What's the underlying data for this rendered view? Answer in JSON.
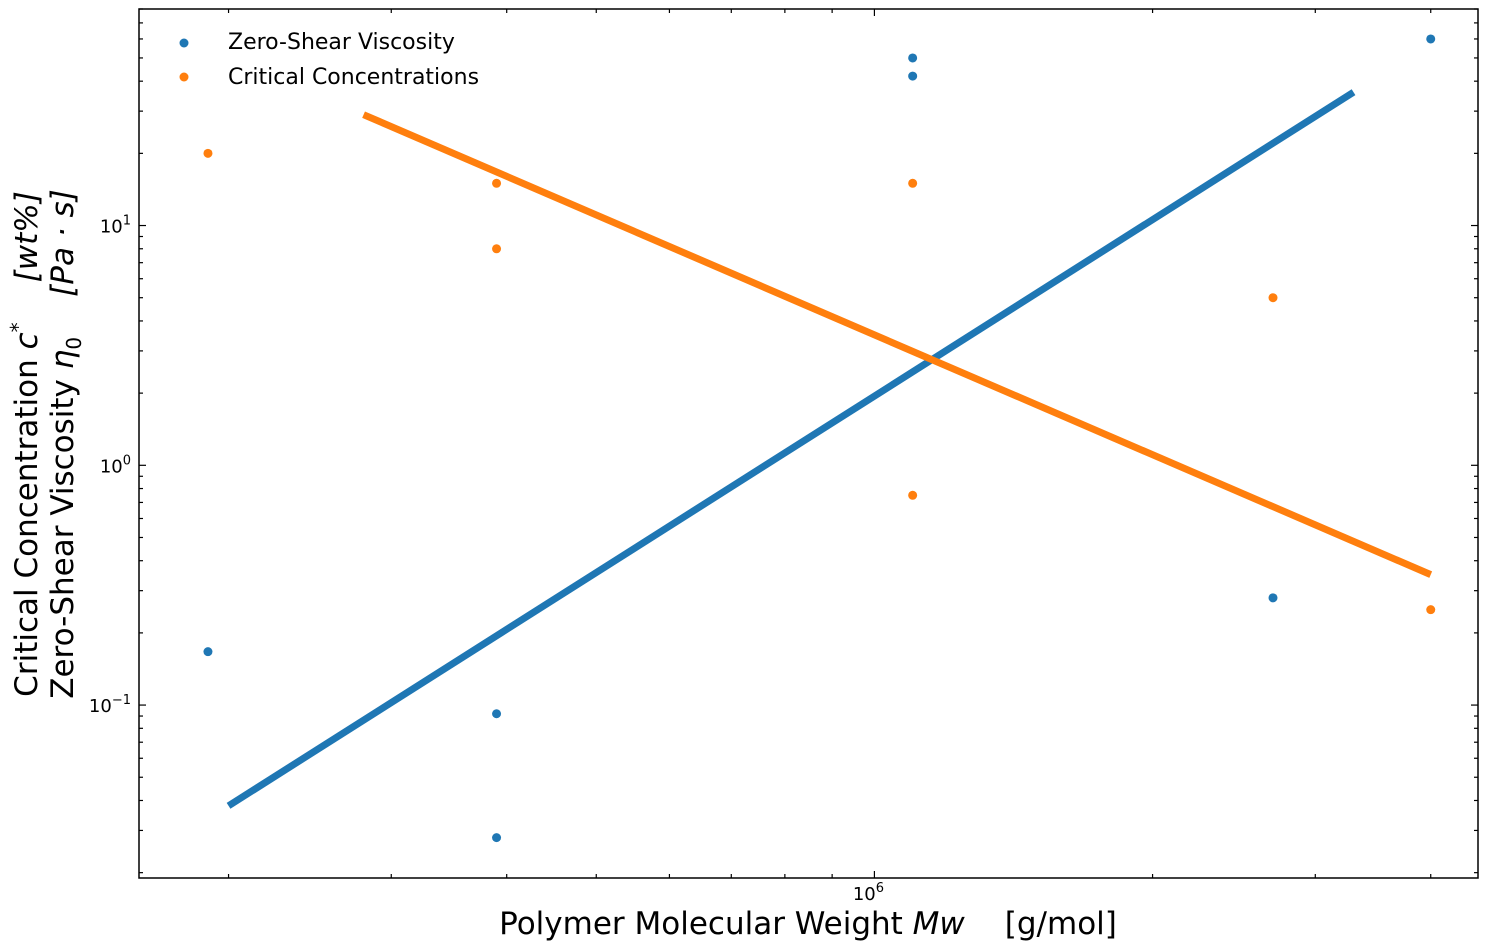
{
  "chart_data": {
    "type": "scatter",
    "title": "",
    "xlabel": "Polymer Molecular Weight Mw [g/mol]",
    "xlabel_parts": {
      "text": "Polymer Molecular Weight ",
      "var": "Mw",
      "unit": "[g/mol]"
    },
    "ylabel_lines": [
      {
        "text": "Critical Concentration ",
        "var": "c",
        "sup": "*",
        "unit": "[wt%]"
      },
      {
        "text": "Zero-Shear Viscosity ",
        "var": "η",
        "sub": "0",
        "unit": "[Pa · s]"
      }
    ],
    "x_scale": "log",
    "y_scale": "log",
    "xlim": [
      160000,
      4500000
    ],
    "ylim": [
      0.019,
      80
    ],
    "x_ticks": [
      {
        "value": 1000000,
        "base": "10",
        "exp": "6"
      }
    ],
    "y_ticks": [
      {
        "value": 0.1,
        "base": "10",
        "exp": "−1"
      },
      {
        "value": 1,
        "base": "10",
        "exp": "0"
      },
      {
        "value": 10,
        "base": "10",
        "exp": "1"
      }
    ],
    "grid": false,
    "legend_position": "top-left",
    "series": [
      {
        "name": "Zero-Shear Viscosity",
        "kind": "scatter",
        "color": "#1f77b4",
        "points": [
          [
            190000,
            0.167
          ],
          [
            390000,
            0.092
          ],
          [
            390000,
            0.028
          ],
          [
            1100000,
            50
          ],
          [
            1100000,
            42
          ],
          [
            2700000,
            0.28
          ],
          [
            4000000,
            60
          ]
        ]
      },
      {
        "name": "Critical Concentrations",
        "kind": "scatter",
        "color": "#ff7f0e",
        "points": [
          [
            190000,
            20
          ],
          [
            390000,
            15
          ],
          [
            390000,
            8
          ],
          [
            1100000,
            15
          ],
          [
            1100000,
            0.75
          ],
          [
            2700000,
            5
          ],
          [
            4000000,
            0.25
          ]
        ]
      }
    ],
    "fit_lines": [
      {
        "color": "#1f77b4",
        "points": [
          [
            200000,
            0.038
          ],
          [
            3300000,
            36
          ]
        ]
      },
      {
        "color": "#ff7f0e",
        "points": [
          [
            280000,
            29
          ],
          [
            4000000,
            0.35
          ]
        ]
      }
    ]
  }
}
